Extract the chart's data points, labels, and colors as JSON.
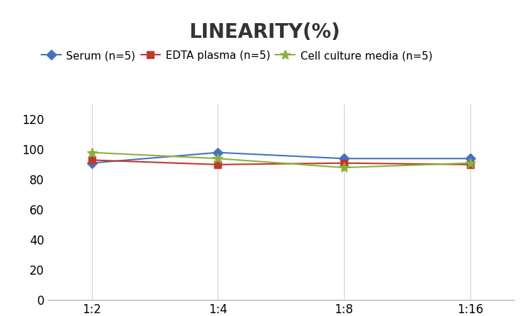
{
  "title": "LINEARITY(%)",
  "x_labels": [
    "1:2",
    "1:4",
    "1:8",
    "1:16"
  ],
  "x_positions": [
    0,
    1,
    2,
    3
  ],
  "series": [
    {
      "label": "Serum (n=5)",
      "values": [
        91,
        98,
        94,
        94
      ],
      "color": "#4472C4",
      "marker": "D",
      "markersize": 7,
      "linewidth": 1.5
    },
    {
      "label": "EDTA plasma (n=5)",
      "values": [
        93,
        90,
        91,
        90
      ],
      "color": "#C0392B",
      "marker": "s",
      "markersize": 7,
      "linewidth": 1.5
    },
    {
      "label": "Cell culture media (n=5)",
      "values": [
        98,
        94,
        88,
        91
      ],
      "color": "#8DB03A",
      "marker": "*",
      "markersize": 10,
      "linewidth": 1.5
    }
  ],
  "ylim": [
    0,
    130
  ],
  "yticks": [
    0,
    20,
    40,
    60,
    80,
    100,
    120
  ],
  "title_fontsize": 20,
  "legend_fontsize": 11,
  "tick_fontsize": 12,
  "background_color": "#ffffff",
  "grid_color": "#d3d3d3"
}
